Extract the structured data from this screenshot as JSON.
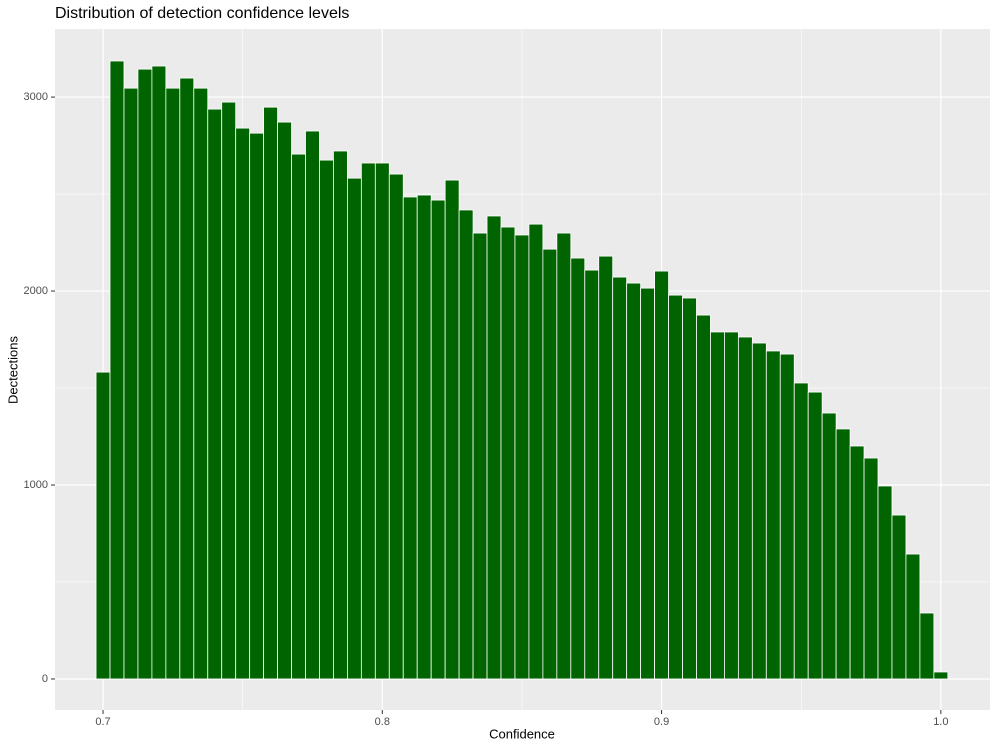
{
  "chart_data": {
    "type": "histogram",
    "title": "Distribution of detection confidence levels",
    "x_label": "Confidence",
    "y_label": "Dectections",
    "color": "#006400",
    "bins": [
      0.6975,
      0.7025,
      0.7075,
      0.7125,
      0.7175,
      0.7225,
      0.7275,
      0.7325,
      0.7375,
      0.7425,
      0.7475,
      0.7525,
      0.7575,
      0.7625,
      0.7675,
      0.7725,
      0.7775,
      0.7825,
      0.7875,
      0.7925,
      0.7975,
      0.8025,
      0.8075,
      0.8125,
      0.8175,
      0.8225,
      0.8275,
      0.8325,
      0.8375,
      0.8425,
      0.8475,
      0.8525,
      0.8575,
      0.8625,
      0.8675,
      0.8725,
      0.8775,
      0.8825,
      0.8875,
      0.8925,
      0.8975,
      0.9025,
      0.9075,
      0.9125,
      0.9175,
      0.9225,
      0.9275,
      0.9325,
      0.9375,
      0.9425,
      0.9475,
      0.9525,
      0.9575,
      0.9625,
      0.9675,
      0.9725,
      0.9775,
      0.9825,
      0.9875,
      0.9925,
      0.9975,
      1.0025
    ],
    "values": [
      1582,
      3186,
      3046,
      3144,
      3160,
      3046,
      3098,
      3046,
      2938,
      2974,
      2840,
      2814,
      2948,
      2871,
      2706,
      2825,
      2675,
      2722,
      2582,
      2660,
      2660,
      2603,
      2485,
      2495,
      2469,
      2572,
      2418,
      2299,
      2387,
      2330,
      2289,
      2345,
      2216,
      2299,
      2170,
      2108,
      2180,
      2072,
      2041,
      2015,
      2103,
      1979,
      1964,
      1876,
      1789,
      1789,
      1763,
      1732,
      1691,
      1675,
      1526,
      1479,
      1371,
      1289,
      1201,
      1139,
      995,
      845,
      644,
      340,
      36
    ],
    "xlim": [
      0.6828,
      1.0176
    ],
    "ylim": [
      -160,
      3351
    ],
    "xticks": [
      0.7,
      0.8,
      0.9,
      {
        "value": 1,
        "label": "1.0"
      }
    ],
    "yticks": [
      0,
      1000,
      2000,
      3000
    ],
    "minor_xticks": [
      0.75,
      0.85,
      0.95
    ],
    "minor_yticks": [
      500,
      1500,
      2500
    ],
    "grid": true
  }
}
